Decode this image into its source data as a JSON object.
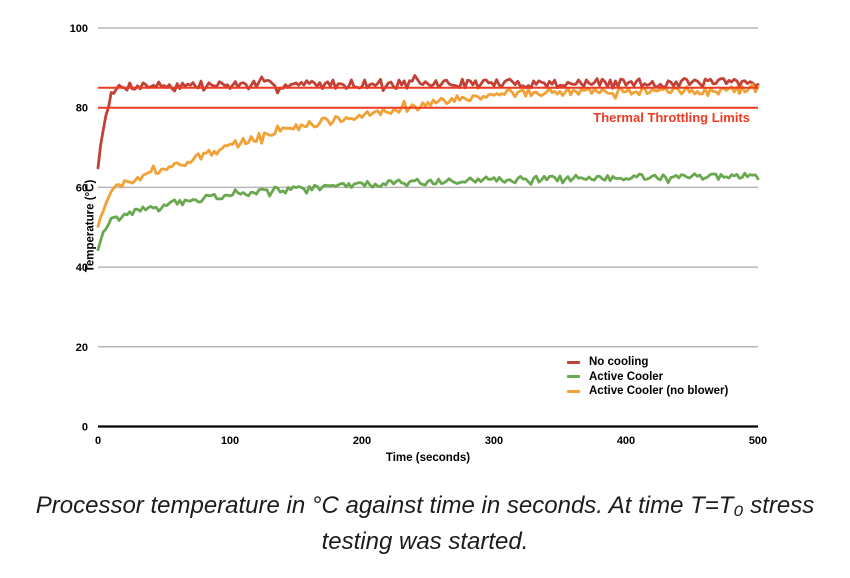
{
  "page": {
    "background": "#ffffff"
  },
  "chart_data": {
    "type": "line",
    "title": "",
    "xlabel": "Time (seconds)",
    "ylabel": "Temperature (°C)",
    "xlim": [
      0,
      500
    ],
    "ylim": [
      0,
      100
    ],
    "x_ticks": [
      0,
      100,
      200,
      300,
      400,
      500
    ],
    "y_ticks": [
      0,
      20,
      40,
      60,
      80,
      100
    ],
    "grid": true,
    "grid_color": "#b7b7b7",
    "axis_color": "#000000",
    "legend_position": "inside-right-below-20-gridline",
    "series": [
      {
        "name": "No cooling",
        "color": "#c24035",
        "noise_amplitude_c": 1.15,
        "points": [
          [
            0,
            65
          ],
          [
            2,
            70.5
          ],
          [
            4,
            75
          ],
          [
            6,
            78.5
          ],
          [
            8,
            81
          ],
          [
            10,
            82.7
          ],
          [
            13,
            84.2
          ],
          [
            16,
            85
          ],
          [
            20,
            85.3
          ],
          [
            30,
            85.6
          ],
          [
            60,
            85.6
          ],
          [
            100,
            85.7
          ],
          [
            150,
            85.8
          ],
          [
            200,
            86
          ],
          [
            250,
            86
          ],
          [
            300,
            86.1
          ],
          [
            350,
            86.1
          ],
          [
            400,
            86.2
          ],
          [
            450,
            86.2
          ],
          [
            500,
            86.3
          ]
        ]
      },
      {
        "name": "Active Cooler",
        "color": "#6aa84f",
        "noise_amplitude_c": 0.8,
        "points": [
          [
            0,
            44.5
          ],
          [
            3,
            48
          ],
          [
            6,
            50
          ],
          [
            10,
            51.5
          ],
          [
            15,
            52.5
          ],
          [
            20,
            53.2
          ],
          [
            30,
            54.3
          ],
          [
            40,
            55.1
          ],
          [
            60,
            56.2
          ],
          [
            80,
            57.2
          ],
          [
            100,
            58
          ],
          [
            130,
            59
          ],
          [
            160,
            59.9
          ],
          [
            200,
            60.7
          ],
          [
            250,
            61.4
          ],
          [
            300,
            61.9
          ],
          [
            350,
            62.2
          ],
          [
            400,
            62.5
          ],
          [
            450,
            62.7
          ],
          [
            500,
            62.8
          ]
        ]
      },
      {
        "name": "Active Cooler (no blower)",
        "color": "#f2a136",
        "noise_amplitude_c": 1.0,
        "points": [
          [
            0,
            50
          ],
          [
            3,
            53.5
          ],
          [
            6,
            55.5
          ],
          [
            10,
            58
          ],
          [
            14,
            60
          ],
          [
            18,
            61
          ],
          [
            26,
            61.6
          ],
          [
            33,
            62.2
          ],
          [
            40,
            63.3
          ],
          [
            50,
            64.6
          ],
          [
            60,
            65.6
          ],
          [
            80,
            68
          ],
          [
            100,
            70.4
          ],
          [
            120,
            72.4
          ],
          [
            140,
            74.6
          ],
          [
            160,
            75.9
          ],
          [
            180,
            76.9
          ],
          [
            200,
            78
          ],
          [
            220,
            79.2
          ],
          [
            240,
            80.3
          ],
          [
            260,
            81.5
          ],
          [
            280,
            82.5
          ],
          [
            300,
            83.2
          ],
          [
            320,
            83.7
          ],
          [
            350,
            84
          ],
          [
            400,
            84.2
          ],
          [
            450,
            84.3
          ],
          [
            500,
            84.4
          ]
        ]
      }
    ],
    "limit_lines": {
      "label": "Thermal Throttling Limits",
      "color": "#ee3a22",
      "values": [
        85,
        80
      ]
    }
  },
  "caption": {
    "line1": "Processor temperature in °C against time in seconds. At time T=T₀ stress",
    "line2": "testing was started."
  }
}
